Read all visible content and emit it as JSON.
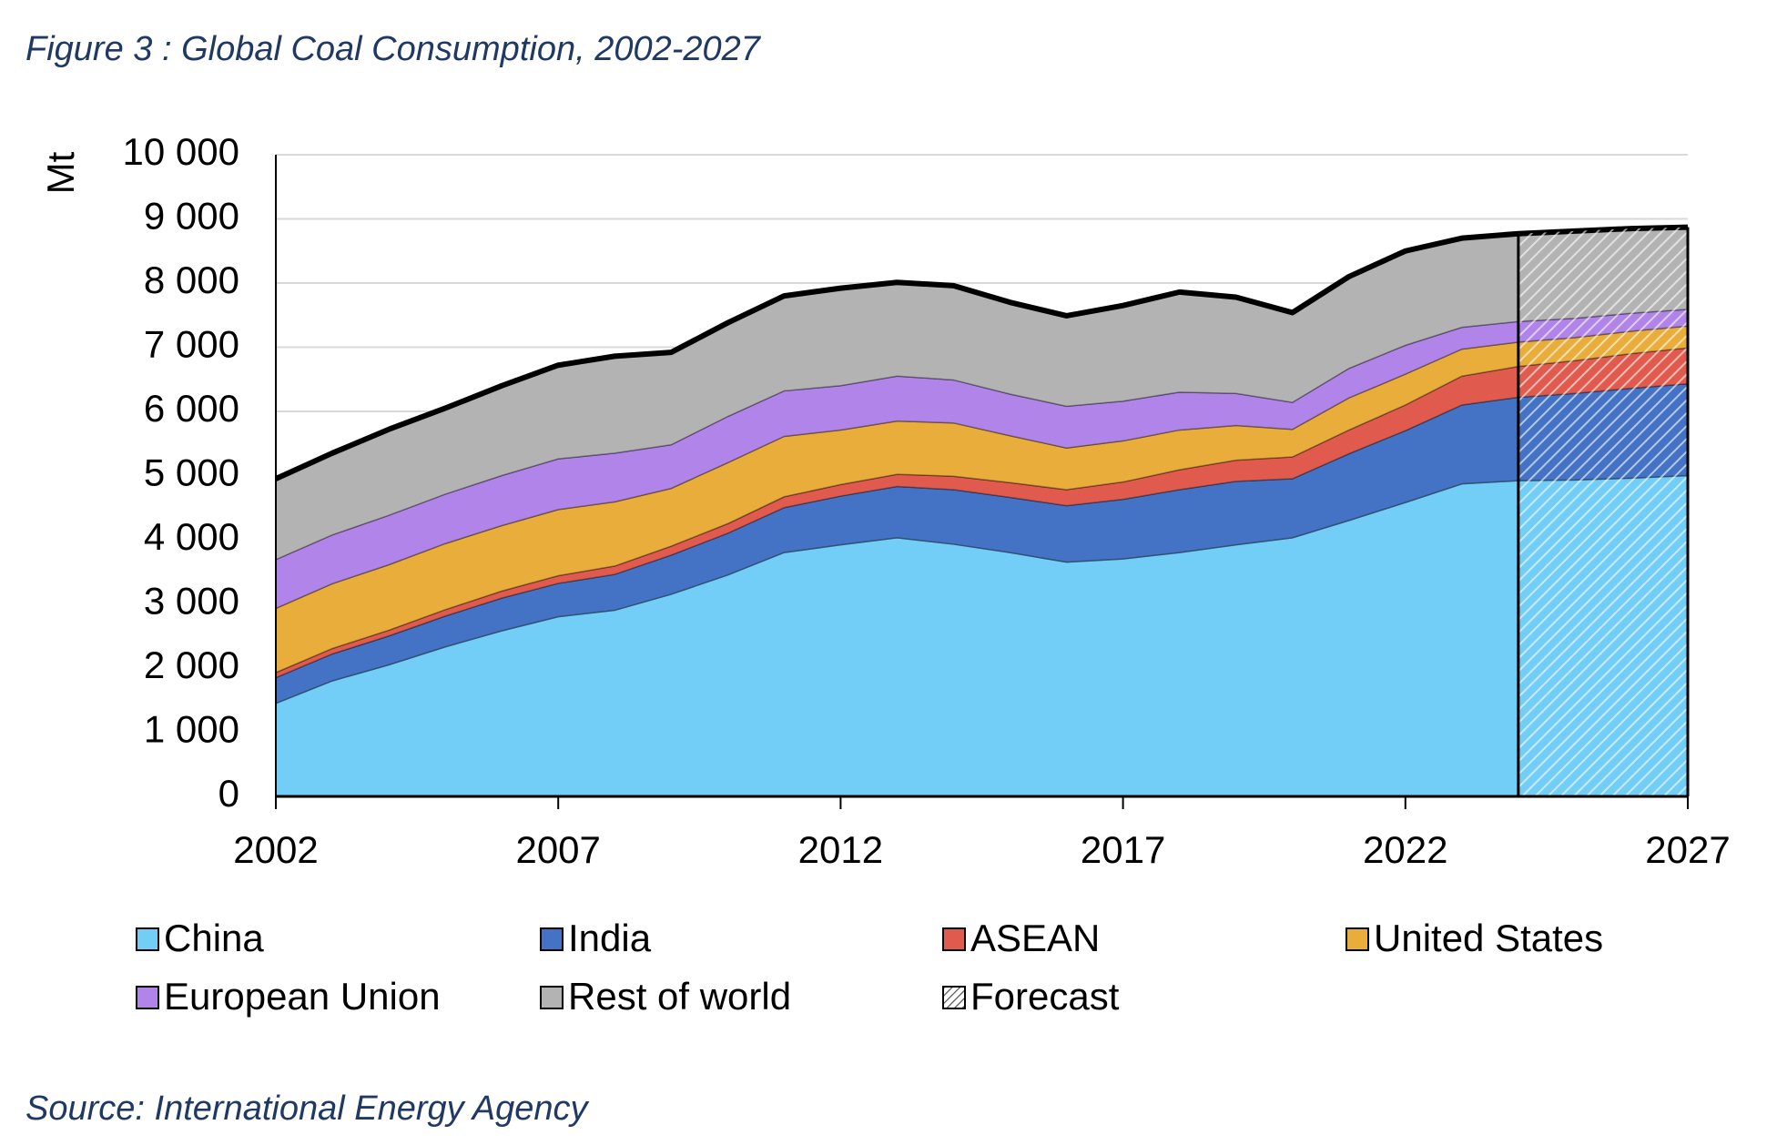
{
  "chart_data": {
    "type": "stacked_area",
    "title": "Figure 3 : Global Coal Consumption, 2002-2027",
    "source": "Source: International Energy Agency",
    "y_label": "Mt",
    "x": [
      2002,
      2003,
      2004,
      2005,
      2006,
      2007,
      2008,
      2009,
      2010,
      2011,
      2012,
      2013,
      2014,
      2015,
      2016,
      2017,
      2018,
      2019,
      2020,
      2021,
      2022,
      2023,
      2024,
      2025,
      2026,
      2027
    ],
    "series": [
      {
        "name": "China",
        "color": "#72cdf7",
        "values": [
          1450,
          1800,
          2050,
          2330,
          2580,
          2800,
          2900,
          3150,
          3450,
          3800,
          3920,
          4030,
          3930,
          3800,
          3650,
          3700,
          3800,
          3920,
          4030,
          4300,
          4580,
          4870,
          4920,
          4930,
          4960,
          5000
        ]
      },
      {
        "name": "India",
        "color": "#4472c4",
        "values": [
          400,
          420,
          450,
          480,
          510,
          520,
          560,
          610,
          650,
          700,
          760,
          800,
          850,
          860,
          880,
          930,
          980,
          990,
          920,
          1040,
          1120,
          1230,
          1300,
          1350,
          1400,
          1430
        ]
      },
      {
        "name": "ASEAN",
        "color": "#e05a4e",
        "values": [
          80,
          85,
          90,
          100,
          110,
          120,
          130,
          140,
          150,
          170,
          180,
          190,
          210,
          230,
          250,
          270,
          310,
          330,
          340,
          370,
          400,
          450,
          480,
          510,
          540,
          560
        ]
      },
      {
        "name": "United States",
        "color": "#e8ad3a",
        "values": [
          1000,
          1010,
          1020,
          1030,
          1020,
          1030,
          1000,
          900,
          950,
          940,
          850,
          830,
          830,
          730,
          650,
          640,
          620,
          540,
          430,
          500,
          480,
          420,
          380,
          360,
          350,
          340
        ]
      },
      {
        "name": "European Union",
        "color": "#b084e8",
        "values": [
          760,
          760,
          770,
          770,
          780,
          790,
          760,
          680,
          720,
          710,
          690,
          700,
          670,
          650,
          650,
          620,
          590,
          500,
          420,
          460,
          450,
          340,
          320,
          300,
          280,
          260
        ]
      },
      {
        "name": "Rest of world",
        "color": "#b3b3b3",
        "values": [
          1260,
          1275,
          1340,
          1340,
          1400,
          1460,
          1510,
          1440,
          1460,
          1480,
          1520,
          1460,
          1470,
          1430,
          1410,
          1490,
          1560,
          1500,
          1400,
          1430,
          1470,
          1390,
          1370,
          1360,
          1320,
          1280
        ]
      }
    ],
    "forecast_label": "Forecast",
    "forecast_from": 2024,
    "xlim": [
      2002,
      2027
    ],
    "xticks": [
      2002,
      2007,
      2012,
      2017,
      2022,
      2027
    ],
    "ylim": [
      0,
      10000
    ],
    "yticks": [
      0,
      {
        "value": 1000,
        "label": "1 000"
      },
      {
        "value": 2000,
        "label": "2 000"
      },
      {
        "value": 3000,
        "label": "3 000"
      },
      {
        "value": 4000,
        "label": "4 000"
      },
      {
        "value": 5000,
        "label": "5 000"
      },
      {
        "value": 6000,
        "label": "6 000"
      },
      {
        "value": 7000,
        "label": "7 000"
      },
      {
        "value": 8000,
        "label": "8 000"
      },
      {
        "value": 9000,
        "label": "9 000"
      },
      {
        "value": 10000,
        "label": "10 000"
      }
    ],
    "grid": true
  }
}
